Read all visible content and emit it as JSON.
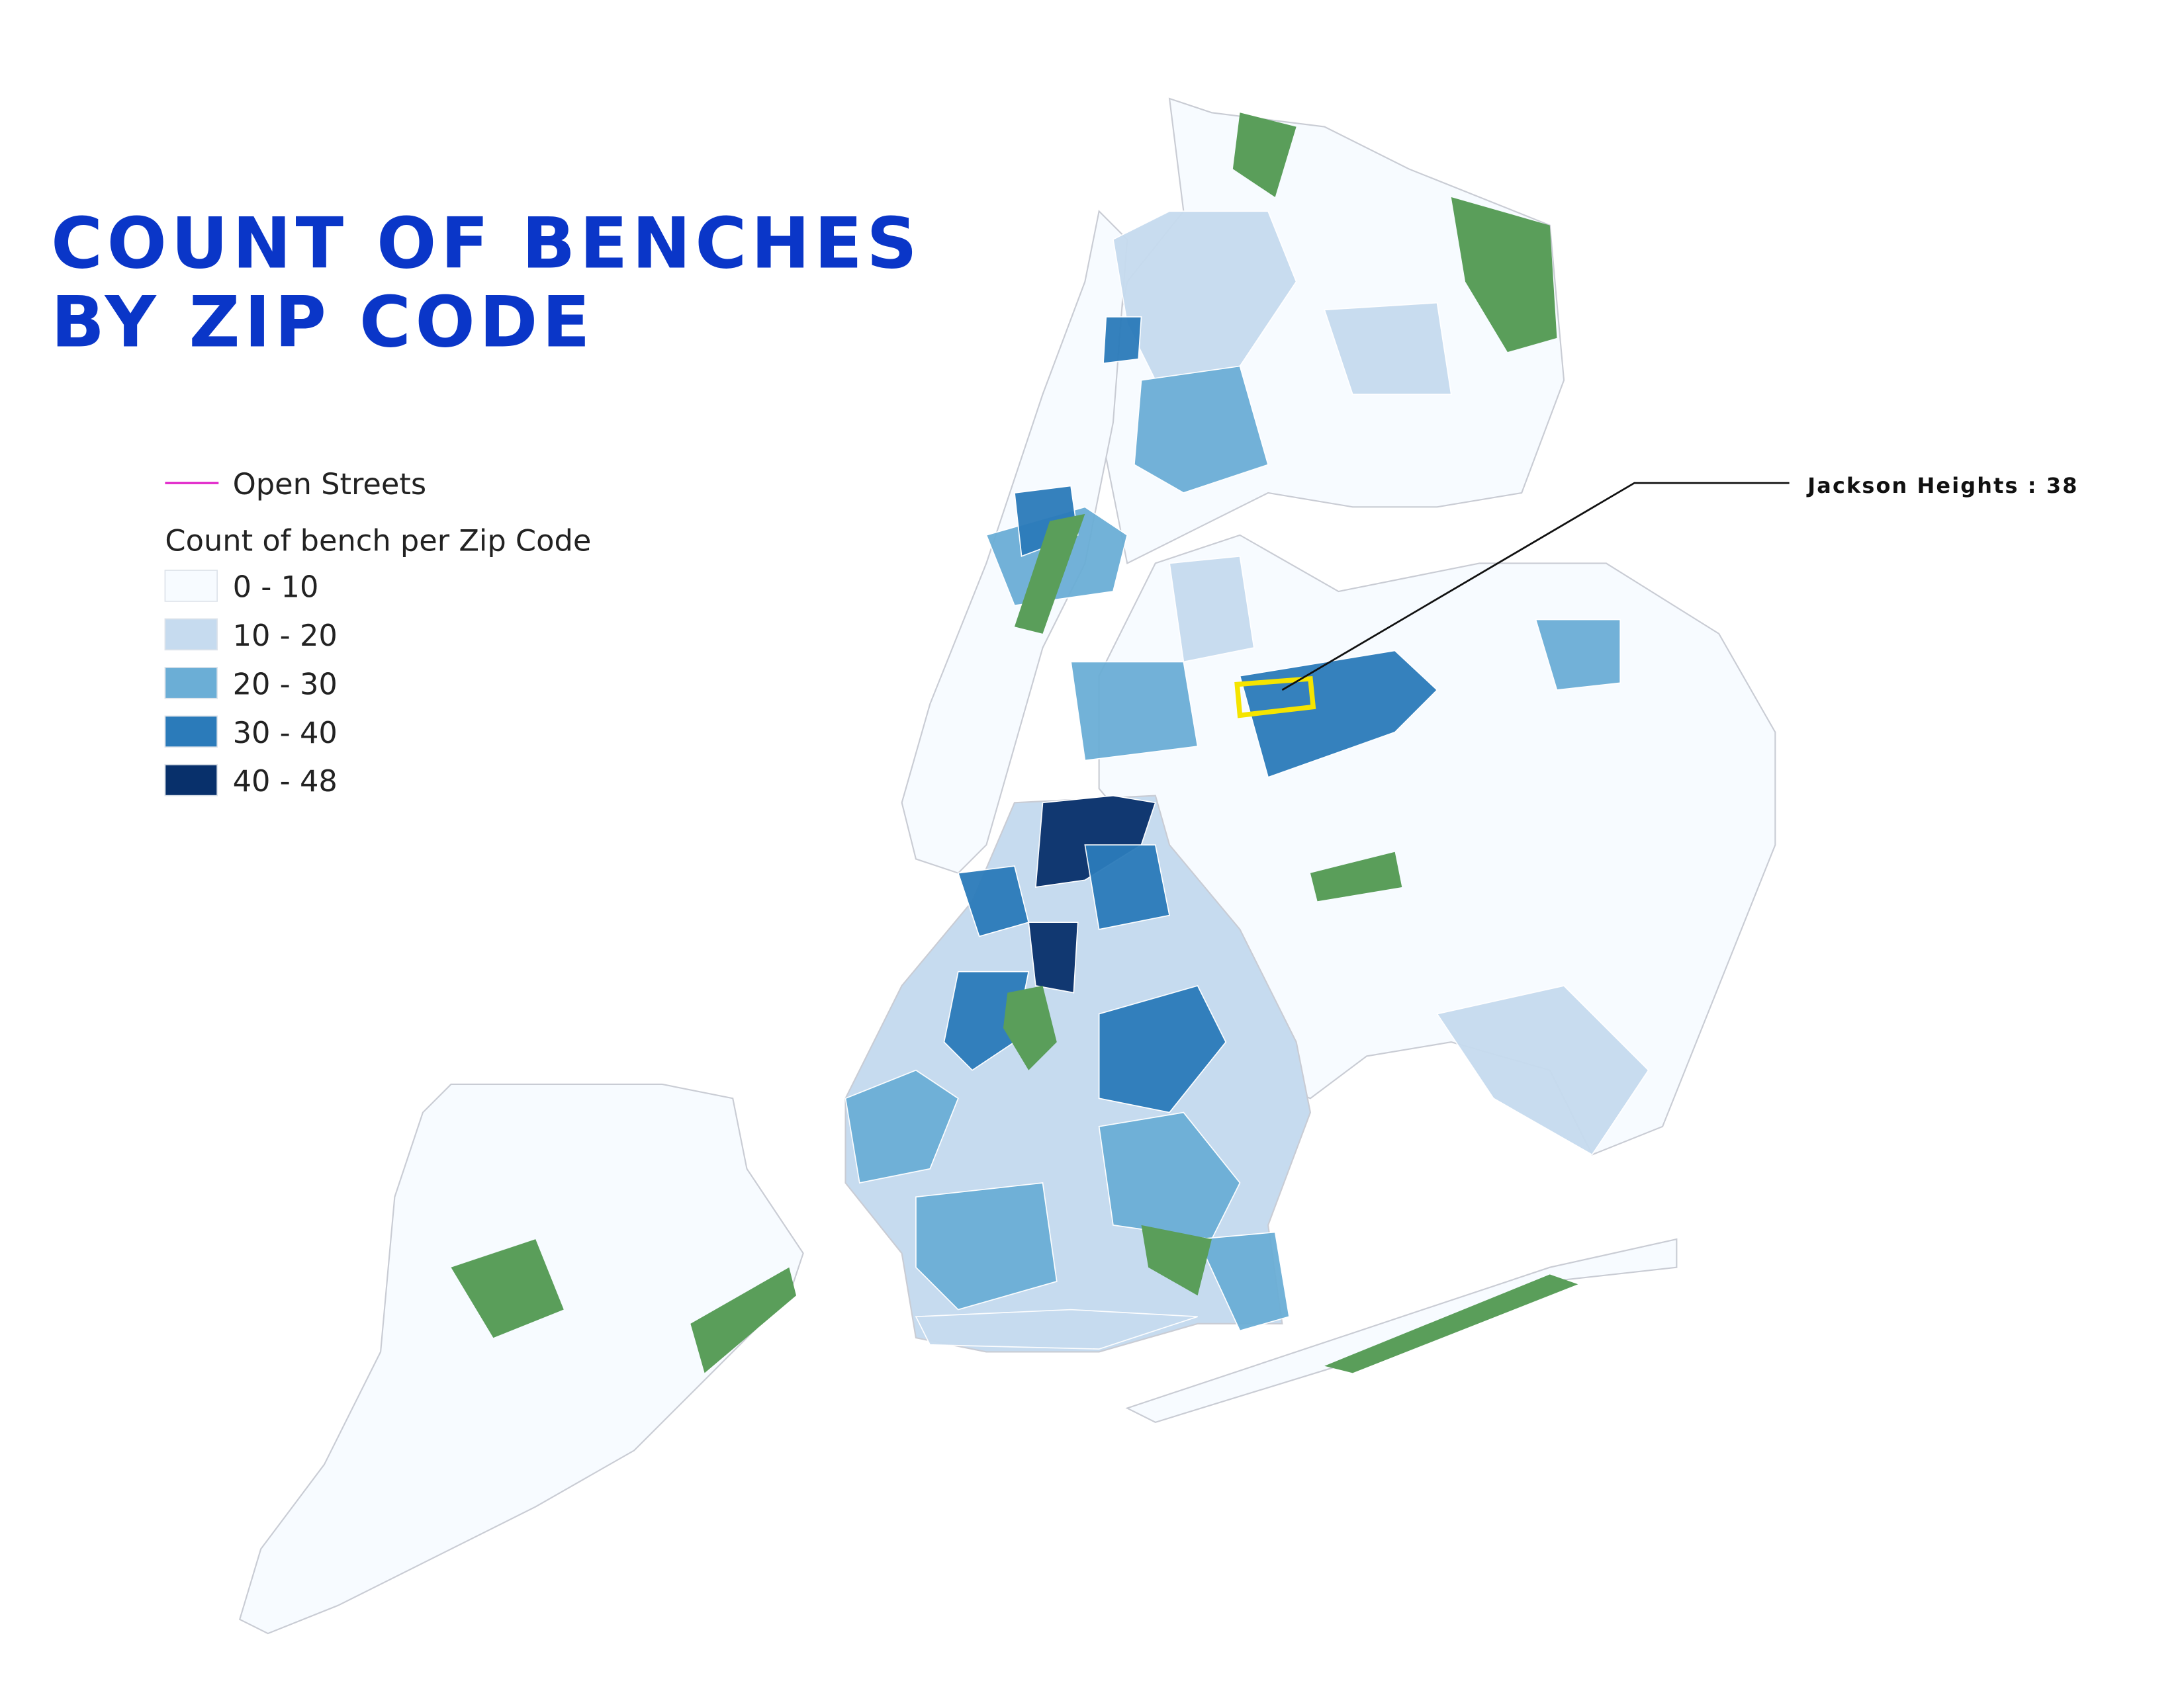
{
  "title": [
    "COUNT OF BENCHES",
    "BY ZIP CODE"
  ],
  "legend": {
    "line_item": {
      "label": "Open Streets",
      "color": "#e020c8"
    },
    "title": "Count of bench per Zip Code",
    "classes": [
      {
        "label": "0 - 10",
        "color": "#f7fbff"
      },
      {
        "label": "10 - 20",
        "color": "#c6dbef"
      },
      {
        "label": "20 - 30",
        "color": "#6baed6"
      },
      {
        "label": "30 - 40",
        "color": "#2b7bba"
      },
      {
        "label": "40 - 48",
        "color": "#08306b"
      }
    ]
  },
  "annotation": "Jackson Heights : 38"
}
